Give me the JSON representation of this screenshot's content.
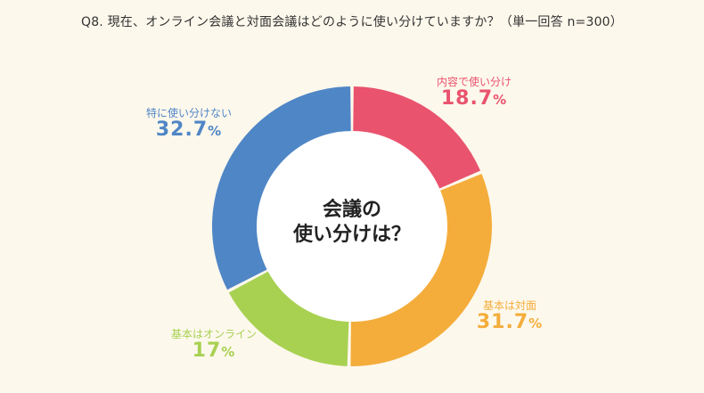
{
  "title": "Q8. 現在、オンライン会議と対面会議はどのように使い分けていますか？（単一回答 n=300）",
  "center_label": [
    "会議の",
    "使い分けは？"
  ],
  "unit": "%",
  "chart_data": {
    "type": "pie",
    "donut": true,
    "title": "Q8. 現在、オンライン会議と対面会議はどのように使い分けていますか？（単一回答 n=300）",
    "categories": [
      "内容で使い分け",
      "基本は対面",
      "基本はオンライン",
      "特に使い分けない"
    ],
    "values": [
      18.7,
      31.7,
      17.0,
      32.7
    ],
    "colors": [
      "#e9536e",
      "#f4ad3b",
      "#a8d152",
      "#4f86c6"
    ],
    "legend": "none"
  }
}
